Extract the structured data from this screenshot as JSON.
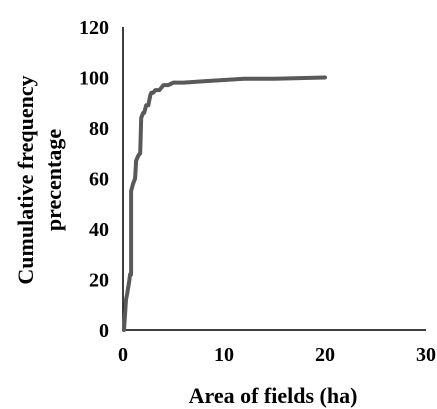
{
  "chart_data": {
    "type": "line",
    "title": "",
    "xlabel": "Area of fields (ha)",
    "ylabel_lines": [
      "Cumulative frequency",
      "precentage"
    ],
    "xlim": [
      0,
      30
    ],
    "ylim": [
      0,
      120
    ],
    "x_ticks": [
      "0",
      "10",
      "20",
      "30"
    ],
    "y_ticks": [
      "0",
      "20",
      "40",
      "60",
      "80",
      "100",
      "120"
    ],
    "grid": false,
    "legend": "none",
    "line_color": "#595959",
    "series": [
      {
        "x": [
          0.1,
          0.3,
          0.4,
          0.6,
          0.7,
          0.8,
          0.8,
          1.0,
          1.2,
          1.3,
          1.5,
          1.7,
          1.8,
          2.0,
          2.1,
          2.3,
          2.5,
          2.7,
          2.8,
          3.0,
          3.2,
          3.4,
          3.6,
          3.8,
          4.0,
          4.5,
          5.0,
          6.0,
          8.0,
          10.0,
          12.0,
          15.0,
          20.0
        ],
        "y": [
          0,
          12,
          14,
          19,
          22,
          22,
          55,
          58,
          60,
          67,
          69,
          70,
          84,
          86,
          86,
          89,
          89,
          93,
          94,
          94,
          95,
          95,
          95,
          96,
          97,
          97,
          98,
          98,
          98.5,
          99,
          99.5,
          99.5,
          100
        ]
      }
    ]
  }
}
